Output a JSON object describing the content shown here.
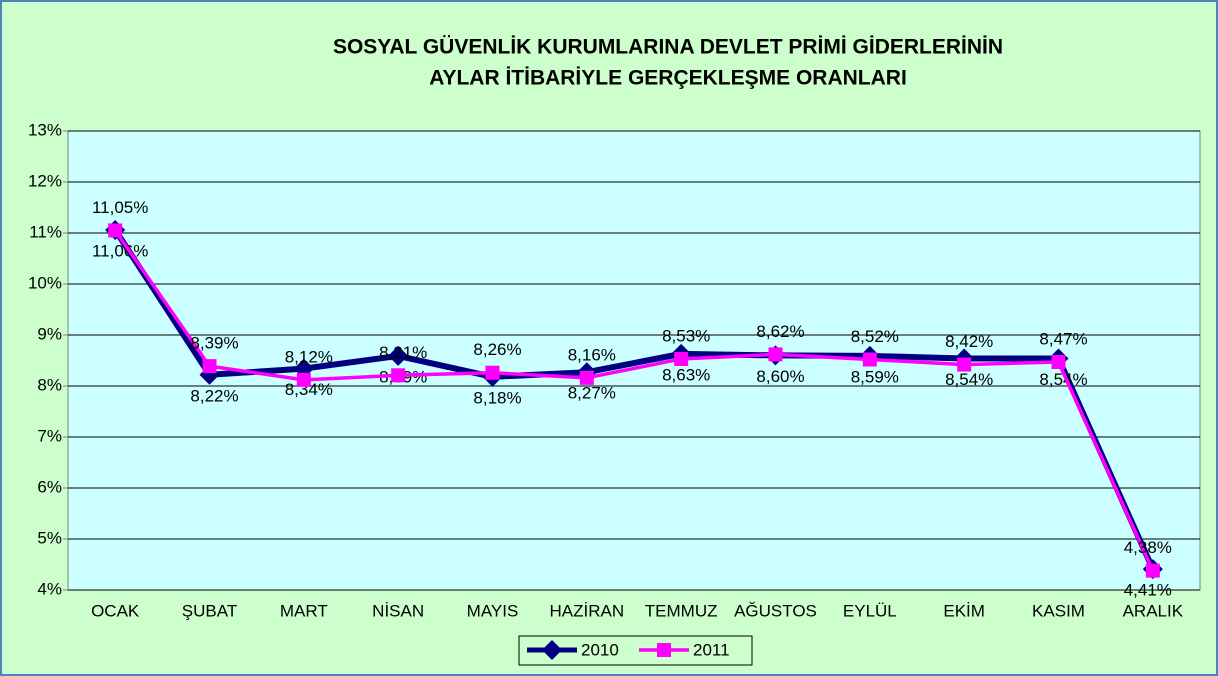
{
  "chart_data": {
    "type": "line",
    "title": "SOSYAL GÜVENLİK KURUMLARINA DEVLET PRİMİ  GİDERLERİNİN",
    "subtitle": "AYLAR İTİBARİYLE GERÇEKLEŞME ORANLARI",
    "categories": [
      "OCAK",
      "ŞUBAT",
      "MART",
      "NİSAN",
      "MAYIS",
      "HAZİRAN",
      "TEMMUZ",
      "AĞUSTOS",
      "EYLÜL",
      "EKİM",
      "KASIM",
      "ARALIK"
    ],
    "series": [
      {
        "name": "2010",
        "color": "#000080",
        "marker": "diamond",
        "values": [
          11.06,
          8.22,
          8.34,
          8.59,
          8.18,
          8.27,
          8.63,
          8.6,
          8.59,
          8.54,
          8.54,
          4.41
        ],
        "value_labels": [
          "11,06%",
          "8,22%",
          "8,34%",
          "8,59%",
          "8,18%",
          "8,27%",
          "8,63%",
          "8,60%",
          "8,59%",
          "8,54%",
          "8,54%",
          "4,41%"
        ]
      },
      {
        "name": "2011",
        "color": "#ff00ff",
        "marker": "square",
        "values": [
          11.05,
          8.39,
          8.12,
          8.21,
          8.26,
          8.16,
          8.53,
          8.62,
          8.52,
          8.42,
          8.47,
          4.38
        ],
        "value_labels": [
          "11,05%",
          "8,39%",
          "8,12%",
          "8,21%",
          "8,26%",
          "8,16%",
          "8,53%",
          "8,62%",
          "8,52%",
          "8,42%",
          "8,47%",
          "4,38%"
        ]
      }
    ],
    "ylim": [
      4,
      13
    ],
    "yticks": [
      {
        "value": 4,
        "label": "4%"
      },
      {
        "value": 5,
        "label": "5%"
      },
      {
        "value": 6,
        "label": "6%"
      },
      {
        "value": 7,
        "label": "7%"
      },
      {
        "value": 8,
        "label": "8%"
      },
      {
        "value": 9,
        "label": "9%"
      },
      {
        "value": 10,
        "label": "10%"
      },
      {
        "value": 11,
        "label": "11%"
      },
      {
        "value": 12,
        "label": "12%"
      },
      {
        "value": 13,
        "label": "13%"
      }
    ],
    "grid": true,
    "legend": "bottom"
  }
}
